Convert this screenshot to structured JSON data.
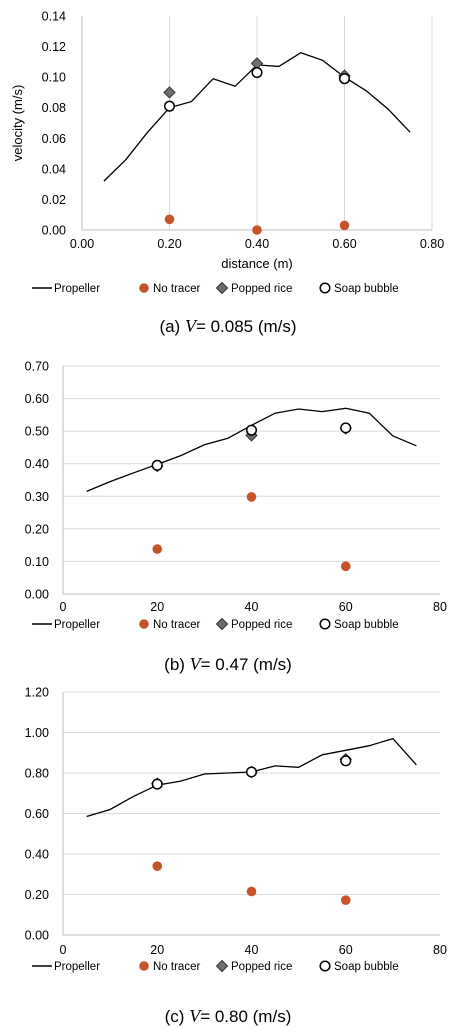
{
  "colors": {
    "propeller": "#000000",
    "no_tracer": "#c8522a",
    "popped_rice": "#6e6e6e",
    "soap_bubble": "#ffffff",
    "grid": "#d9d9d9"
  },
  "legend": {
    "propeller": "Propeller",
    "no_tracer": "No tracer",
    "popped_rice": "Popped rice",
    "soap_bubble": "Soap bubble"
  },
  "chart_data": [
    {
      "type": "line",
      "caption_prefix": "(a)",
      "caption_var": "V",
      "caption_value": "= 0.085 (m/s)",
      "xlabel": "distance (m)",
      "ylabel": "velocity (m/s)",
      "xlim": [
        0,
        0.8
      ],
      "ylim": [
        0,
        0.14
      ],
      "xticks": [
        "0.00",
        "0.20",
        "0.40",
        "0.60",
        "0.80"
      ],
      "yticks": [
        "0.00",
        "0.02",
        "0.04",
        "0.06",
        "0.08",
        "0.10",
        "0.12",
        "0.14"
      ],
      "grid": "vertical",
      "series": [
        {
          "name": "Propeller",
          "style": "line",
          "x": [
            0.05,
            0.1,
            0.15,
            0.2,
            0.25,
            0.3,
            0.35,
            0.4,
            0.45,
            0.5,
            0.55,
            0.6,
            0.65,
            0.7,
            0.75
          ],
          "y": [
            0.032,
            0.046,
            0.064,
            0.08,
            0.084,
            0.099,
            0.094,
            0.108,
            0.107,
            0.116,
            0.111,
            0.1,
            0.091,
            0.079,
            0.064
          ]
        },
        {
          "name": "No tracer",
          "style": "circle-filled",
          "x": [
            0.2,
            0.4,
            0.6
          ],
          "y": [
            0.007,
            0.0,
            0.003
          ]
        },
        {
          "name": "Popped rice",
          "style": "diamond",
          "x": [
            0.2,
            0.4,
            0.6
          ],
          "y": [
            0.09,
            0.109,
            0.101
          ]
        },
        {
          "name": "Soap bubble",
          "style": "circle-open",
          "x": [
            0.2,
            0.4,
            0.6
          ],
          "y": [
            0.081,
            0.103,
            0.099
          ]
        }
      ]
    },
    {
      "type": "line",
      "caption_prefix": "(b)",
      "caption_var": "V",
      "caption_value": "= 0.47 (m/s)",
      "xlabel": "",
      "ylabel": "",
      "xlim": [
        0,
        80
      ],
      "ylim": [
        0,
        0.7
      ],
      "xticks": [
        "0",
        "20",
        "40",
        "60",
        "80"
      ],
      "yticks": [
        "0.00",
        "0.10",
        "0.20",
        "0.30",
        "0.40",
        "0.50",
        "0.60",
        "0.70"
      ],
      "grid": "horizontal",
      "series": [
        {
          "name": "Propeller",
          "style": "line",
          "x": [
            5,
            10,
            15,
            20,
            25,
            30,
            35,
            40,
            45,
            50,
            55,
            60,
            65,
            70,
            75
          ],
          "y": [
            0.315,
            0.345,
            0.372,
            0.398,
            0.425,
            0.458,
            0.478,
            0.518,
            0.555,
            0.568,
            0.56,
            0.57,
            0.555,
            0.485,
            0.455
          ]
        },
        {
          "name": "No tracer",
          "style": "circle-filled",
          "x": [
            20,
            40,
            60
          ],
          "y": [
            0.138,
            0.298,
            0.085
          ]
        },
        {
          "name": "Popped rice",
          "style": "diamond",
          "x": [
            20,
            40,
            60
          ],
          "y": [
            0.393,
            0.487,
            0.508
          ]
        },
        {
          "name": "Soap bubble",
          "style": "circle-open",
          "x": [
            20,
            40,
            60
          ],
          "y": [
            0.395,
            0.503,
            0.51
          ]
        }
      ]
    },
    {
      "type": "line",
      "caption_prefix": "(c)",
      "caption_var": "V",
      "caption_value": "= 0.80 (m/s)",
      "xlabel": "",
      "ylabel": "",
      "xlim": [
        0,
        80
      ],
      "ylim": [
        0,
        1.2
      ],
      "xticks": [
        "0",
        "20",
        "40",
        "60",
        "80"
      ],
      "yticks": [
        "0.00",
        "0.20",
        "0.40",
        "0.60",
        "0.80",
        "1.00",
        "1.20"
      ],
      "grid": "horizontal",
      "series": [
        {
          "name": "Propeller",
          "style": "line",
          "x": [
            5,
            10,
            15,
            20,
            25,
            30,
            35,
            40,
            45,
            50,
            55,
            60,
            65,
            70,
            75
          ],
          "y": [
            0.585,
            0.62,
            0.685,
            0.74,
            0.76,
            0.795,
            0.8,
            0.805,
            0.835,
            0.828,
            0.89,
            0.912,
            0.935,
            0.97,
            0.84
          ]
        },
        {
          "name": "No tracer",
          "style": "circle-filled",
          "x": [
            20,
            40,
            60
          ],
          "y": [
            0.34,
            0.215,
            0.172
          ]
        },
        {
          "name": "Popped rice",
          "style": "diamond",
          "x": [
            20,
            40,
            60
          ],
          "y": [
            0.748,
            0.805,
            0.868
          ]
        },
        {
          "name": "Soap bubble",
          "style": "circle-open",
          "x": [
            20,
            40,
            60
          ],
          "y": [
            0.745,
            0.805,
            0.86
          ]
        }
      ]
    }
  ]
}
